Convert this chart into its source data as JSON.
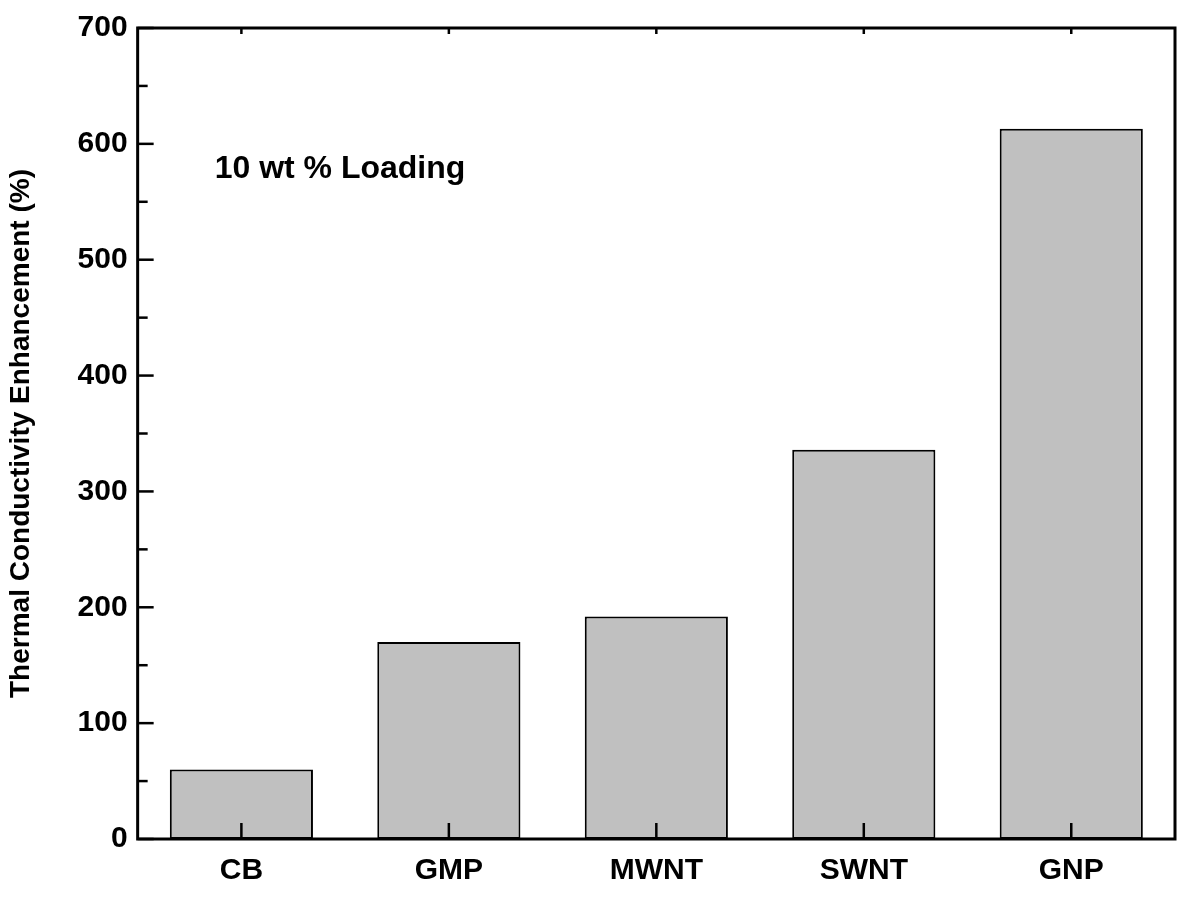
{
  "chart_data": {
    "type": "bar",
    "ylabel": "Thermal Conductivity Enhancement (%)",
    "categories": [
      "CB",
      "GMP",
      "MWNT",
      "SWNT",
      "GNP"
    ],
    "values": [
      60,
      170,
      192,
      336,
      613
    ],
    "color": "#c0c0c0",
    "ylim": [
      0,
      700
    ],
    "yticks": [
      0,
      {
        "value": 50,
        "label": null
      },
      100,
      {
        "value": 150,
        "label": null
      },
      200,
      {
        "value": 250,
        "label": null
      },
      300,
      {
        "value": 350,
        "label": null
      },
      400,
      {
        "value": 450,
        "label": null
      },
      500,
      {
        "value": 550,
        "label": null
      },
      600,
      {
        "value": 650,
        "label": null
      },
      700
    ],
    "grid": false,
    "legend": false,
    "annotations": [
      "10 wt % Loading"
    ]
  }
}
